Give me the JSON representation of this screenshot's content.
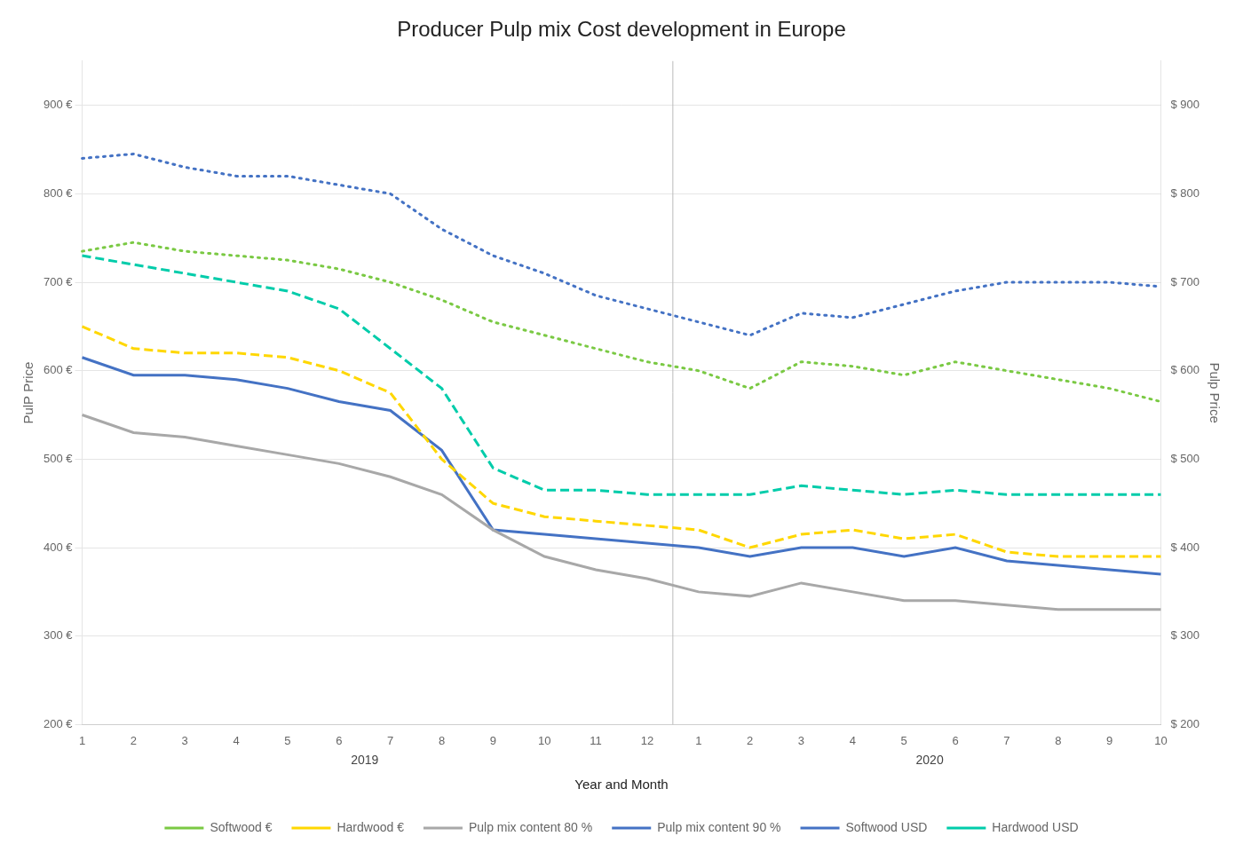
{
  "chart_data": {
    "type": "line",
    "title": "Producer Pulp mix Cost development in Europe",
    "xlabel": "Year and Month",
    "ylabel": "PulP Price",
    "y2label": "Pulp Price",
    "categories": [
      "1",
      "2",
      "3",
      "4",
      "5",
      "6",
      "7",
      "8",
      "9",
      "10",
      "11",
      "12",
      "1",
      "2",
      "3",
      "4",
      "5",
      "6",
      "7",
      "8",
      "9",
      "10"
    ],
    "annotations": [
      "2019",
      "2020"
    ],
    "ylim": [
      200,
      950
    ],
    "yticks": [
      {
        "value": 200,
        "label": "200 €"
      },
      {
        "value": 300,
        "label": "300 €"
      },
      {
        "value": 400,
        "label": "400 €"
      },
      {
        "value": 500,
        "label": "500 €"
      },
      {
        "value": 600,
        "label": "600 €"
      },
      {
        "value": 700,
        "label": "700 €"
      },
      {
        "value": 800,
        "label": "800 €"
      },
      {
        "value": 900,
        "label": "900 €"
      }
    ],
    "y2lim": [
      200,
      950
    ],
    "y2ticks": [
      {
        "value": 200,
        "label": "$ 200"
      },
      {
        "value": 300,
        "label": "$ 300"
      },
      {
        "value": 400,
        "label": "$ 400"
      },
      {
        "value": 500,
        "label": "$ 500"
      },
      {
        "value": 600,
        "label": "$ 600"
      },
      {
        "value": 700,
        "label": "$ 700"
      },
      {
        "value": 800,
        "label": "$ 800"
      },
      {
        "value": 900,
        "label": "$ 900"
      }
    ],
    "grid": true,
    "legend": "bottom",
    "series": [
      {
        "name": "Softwood €",
        "color": "#7AC943",
        "line_style": "dotted",
        "values": [
          735,
          745,
          735,
          730,
          725,
          715,
          700,
          680,
          655,
          640,
          625,
          610,
          600,
          580,
          610,
          605,
          595,
          610,
          600,
          590,
          580,
          565
        ]
      },
      {
        "name": "Hardwood €",
        "color": "#FFD700",
        "line_style": "dashed",
        "values": [
          650,
          625,
          620,
          620,
          615,
          600,
          575,
          500,
          450,
          435,
          430,
          425,
          420,
          400,
          415,
          420,
          410,
          415,
          395,
          390,
          390,
          390
        ]
      },
      {
        "name": "Pulp mix content 80 %",
        "color": "#A8A8A8",
        "line_style": "solid",
        "values": [
          550,
          530,
          525,
          515,
          505,
          495,
          480,
          460,
          420,
          390,
          375,
          365,
          350,
          345,
          360,
          350,
          340,
          340,
          335,
          330,
          330,
          330
        ]
      },
      {
        "name": "Pulp mix content 90 %",
        "color": "#4472C4",
        "line_style": "solid",
        "values": [
          615,
          595,
          595,
          590,
          580,
          565,
          555,
          510,
          420,
          415,
          410,
          405,
          400,
          390,
          400,
          400,
          390,
          400,
          385,
          380,
          375,
          370
        ]
      },
      {
        "name": "Softwood USD",
        "color": "#4472C4",
        "line_style": "dotted",
        "axis": "y2",
        "values": [
          840,
          845,
          830,
          820,
          820,
          810,
          800,
          760,
          730,
          710,
          685,
          670,
          655,
          640,
          665,
          660,
          675,
          690,
          700,
          700,
          700,
          695
        ]
      },
      {
        "name": "Hardwood USD",
        "color": "#00CCAA",
        "line_style": "dashed",
        "axis": "y2",
        "values": [
          730,
          720,
          710,
          700,
          690,
          670,
          625,
          580,
          490,
          465,
          465,
          460,
          460,
          460,
          470,
          465,
          460,
          465,
          460,
          460,
          460,
          460
        ]
      }
    ]
  }
}
